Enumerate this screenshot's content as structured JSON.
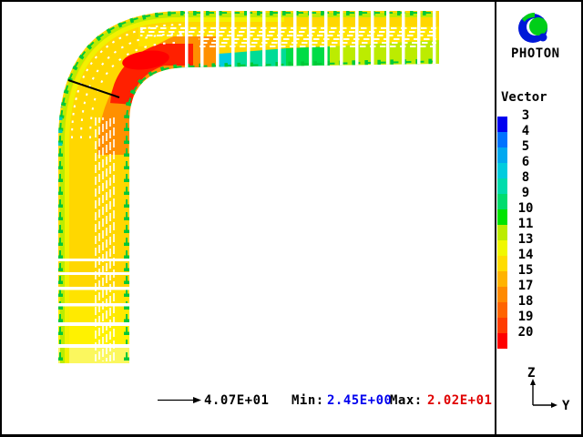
{
  "branding": {
    "app_name": "PHOTON",
    "logo": "photon-swirl-logo",
    "logo_blue": "#0018D8",
    "logo_green": "#00CE18"
  },
  "legend": {
    "title": "Vector",
    "entries": [
      {
        "label": "3",
        "color": "#0000F0"
      },
      {
        "label": "4",
        "color": "#0072FF"
      },
      {
        "label": "5",
        "color": "#00A8F0"
      },
      {
        "label": "6",
        "color": "#00CCDE"
      },
      {
        "label": "8",
        "color": "#00DCAC"
      },
      {
        "label": "9",
        "color": "#00DC6E"
      },
      {
        "label": "10",
        "color": "#00E400"
      },
      {
        "label": "11",
        "color": "#BCEC00"
      },
      {
        "label": "13",
        "color": "#F0F800"
      },
      {
        "label": "14",
        "color": "#FFDC00"
      },
      {
        "label": "15",
        "color": "#FFB300"
      },
      {
        "label": "17",
        "color": "#FF8A00"
      },
      {
        "label": "18",
        "color": "#FF6400"
      },
      {
        "label": "19",
        "color": "#FF3C00"
      },
      {
        "label": "20",
        "color": "#FF0000"
      }
    ]
  },
  "status_bar": {
    "reference_vector": "4.07E+01",
    "min_label": "Min:",
    "min_value": "2.45E+00",
    "min_color": "#0000EE",
    "max_label": "Max:",
    "max_value": "2.02E+01",
    "max_color": "#E00000"
  },
  "axis_indicator": {
    "up": "Z",
    "right": "Y"
  },
  "chart_data": {
    "type": "vector-field",
    "plot_title": "Vector",
    "field": "velocity vectors colored by magnitude",
    "geometry": "90-degree pipe elbow; flow enters the vertical leg at bottom moving up (+Z) and exits right (+Y) through the horizontal leg",
    "legend_levels": [
      3,
      4,
      5,
      6,
      8,
      9,
      10,
      11,
      13,
      14,
      15,
      17,
      18,
      19,
      20
    ],
    "legend_colors": [
      "#0000F0",
      "#0072FF",
      "#00A8F0",
      "#00CCDE",
      "#00DCAC",
      "#00DC6E",
      "#00E400",
      "#BCEC00",
      "#F0F800",
      "#FFDC00",
      "#FFB300",
      "#FF8A00",
      "#FF6400",
      "#FF3C00",
      "#FF0000"
    ],
    "min": 2.45,
    "max": 20.2,
    "min_text": "2.45E+00",
    "max_text": "2.02E+01",
    "reference_vector_length": 40.7,
    "reference_text": "4.07E+01",
    "axes": {
      "vertical": "Z",
      "horizontal": "Y"
    },
    "features": [
      "high-velocity red/orange core (~18-20) hugging the inner wall of the bend, jetting into the horizontal leg",
      "slow blue/cyan separation zone (~3-8) along the bottom wall just downstream of the inner corner",
      "uniform yellow/gold core flow (~14-15) in both straight legs",
      "green slower boundary arrows (~9-11) along all pipe walls",
      "vectors drawn as evenly spaced grid columns/rows separated by white gaps",
      "black probe line drawn across the bend cross-section"
    ]
  }
}
